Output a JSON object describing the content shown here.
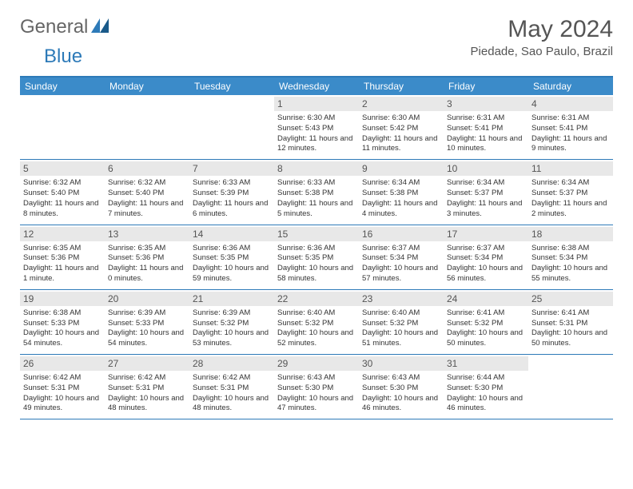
{
  "logo": {
    "text1": "General",
    "text2": "Blue"
  },
  "title": "May 2024",
  "location": "Piedade, Sao Paulo, Brazil",
  "colors": {
    "brand_blue": "#2d7ab8",
    "header_bg": "#3b8bc9",
    "date_bg": "#e8e8e8",
    "text": "#333333",
    "title_text": "#555555"
  },
  "layout": {
    "columns": 7,
    "first_day_column": 3,
    "days_in_month": 31
  },
  "day_names": [
    "Sunday",
    "Monday",
    "Tuesday",
    "Wednesday",
    "Thursday",
    "Friday",
    "Saturday"
  ],
  "days": [
    {
      "n": 1,
      "sr": "6:30 AM",
      "ss": "5:43 PM",
      "dl": "11 hours and 12 minutes."
    },
    {
      "n": 2,
      "sr": "6:30 AM",
      "ss": "5:42 PM",
      "dl": "11 hours and 11 minutes."
    },
    {
      "n": 3,
      "sr": "6:31 AM",
      "ss": "5:41 PM",
      "dl": "11 hours and 10 minutes."
    },
    {
      "n": 4,
      "sr": "6:31 AM",
      "ss": "5:41 PM",
      "dl": "11 hours and 9 minutes."
    },
    {
      "n": 5,
      "sr": "6:32 AM",
      "ss": "5:40 PM",
      "dl": "11 hours and 8 minutes."
    },
    {
      "n": 6,
      "sr": "6:32 AM",
      "ss": "5:40 PM",
      "dl": "11 hours and 7 minutes."
    },
    {
      "n": 7,
      "sr": "6:33 AM",
      "ss": "5:39 PM",
      "dl": "11 hours and 6 minutes."
    },
    {
      "n": 8,
      "sr": "6:33 AM",
      "ss": "5:38 PM",
      "dl": "11 hours and 5 minutes."
    },
    {
      "n": 9,
      "sr": "6:34 AM",
      "ss": "5:38 PM",
      "dl": "11 hours and 4 minutes."
    },
    {
      "n": 10,
      "sr": "6:34 AM",
      "ss": "5:37 PM",
      "dl": "11 hours and 3 minutes."
    },
    {
      "n": 11,
      "sr": "6:34 AM",
      "ss": "5:37 PM",
      "dl": "11 hours and 2 minutes."
    },
    {
      "n": 12,
      "sr": "6:35 AM",
      "ss": "5:36 PM",
      "dl": "11 hours and 1 minute."
    },
    {
      "n": 13,
      "sr": "6:35 AM",
      "ss": "5:36 PM",
      "dl": "11 hours and 0 minutes."
    },
    {
      "n": 14,
      "sr": "6:36 AM",
      "ss": "5:35 PM",
      "dl": "10 hours and 59 minutes."
    },
    {
      "n": 15,
      "sr": "6:36 AM",
      "ss": "5:35 PM",
      "dl": "10 hours and 58 minutes."
    },
    {
      "n": 16,
      "sr": "6:37 AM",
      "ss": "5:34 PM",
      "dl": "10 hours and 57 minutes."
    },
    {
      "n": 17,
      "sr": "6:37 AM",
      "ss": "5:34 PM",
      "dl": "10 hours and 56 minutes."
    },
    {
      "n": 18,
      "sr": "6:38 AM",
      "ss": "5:34 PM",
      "dl": "10 hours and 55 minutes."
    },
    {
      "n": 19,
      "sr": "6:38 AM",
      "ss": "5:33 PM",
      "dl": "10 hours and 54 minutes."
    },
    {
      "n": 20,
      "sr": "6:39 AM",
      "ss": "5:33 PM",
      "dl": "10 hours and 54 minutes."
    },
    {
      "n": 21,
      "sr": "6:39 AM",
      "ss": "5:32 PM",
      "dl": "10 hours and 53 minutes."
    },
    {
      "n": 22,
      "sr": "6:40 AM",
      "ss": "5:32 PM",
      "dl": "10 hours and 52 minutes."
    },
    {
      "n": 23,
      "sr": "6:40 AM",
      "ss": "5:32 PM",
      "dl": "10 hours and 51 minutes."
    },
    {
      "n": 24,
      "sr": "6:41 AM",
      "ss": "5:32 PM",
      "dl": "10 hours and 50 minutes."
    },
    {
      "n": 25,
      "sr": "6:41 AM",
      "ss": "5:31 PM",
      "dl": "10 hours and 50 minutes."
    },
    {
      "n": 26,
      "sr": "6:42 AM",
      "ss": "5:31 PM",
      "dl": "10 hours and 49 minutes."
    },
    {
      "n": 27,
      "sr": "6:42 AM",
      "ss": "5:31 PM",
      "dl": "10 hours and 48 minutes."
    },
    {
      "n": 28,
      "sr": "6:42 AM",
      "ss": "5:31 PM",
      "dl": "10 hours and 48 minutes."
    },
    {
      "n": 29,
      "sr": "6:43 AM",
      "ss": "5:30 PM",
      "dl": "10 hours and 47 minutes."
    },
    {
      "n": 30,
      "sr": "6:43 AM",
      "ss": "5:30 PM",
      "dl": "10 hours and 46 minutes."
    },
    {
      "n": 31,
      "sr": "6:44 AM",
      "ss": "5:30 PM",
      "dl": "10 hours and 46 minutes."
    }
  ],
  "labels": {
    "sunrise": "Sunrise:",
    "sunset": "Sunset:",
    "daylight": "Daylight:"
  }
}
